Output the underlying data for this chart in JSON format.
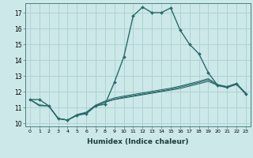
{
  "title": "",
  "xlabel": "Humidex (Indice chaleur)",
  "ylabel": "",
  "bg_color": "#cce8e8",
  "grid_color": "#aacfcf",
  "line_color": "#2a6b6b",
  "xlim": [
    -0.5,
    23.5
  ],
  "ylim": [
    9.8,
    17.6
  ],
  "xticks": [
    0,
    1,
    2,
    3,
    4,
    5,
    6,
    7,
    8,
    9,
    10,
    11,
    12,
    13,
    14,
    15,
    16,
    17,
    18,
    19,
    20,
    21,
    22,
    23
  ],
  "yticks": [
    10,
    11,
    12,
    13,
    14,
    15,
    16,
    17
  ],
  "series": [
    {
      "x": [
        0,
        1,
        2,
        3,
        4,
        5,
        6,
        7,
        8,
        9,
        10,
        11,
        12,
        13,
        14,
        15,
        16,
        17,
        18,
        19,
        20,
        21,
        22,
        23
      ],
      "y": [
        11.5,
        11.5,
        11.1,
        10.3,
        10.2,
        10.5,
        10.6,
        11.1,
        11.2,
        12.6,
        14.2,
        16.8,
        17.35,
        17.0,
        17.0,
        17.3,
        15.9,
        15.0,
        14.4,
        13.2,
        12.4,
        12.3,
        12.5,
        11.85
      ],
      "marker": "D",
      "markersize": 2.0,
      "linewidth": 1.0
    },
    {
      "x": [
        0,
        1,
        2,
        3,
        4,
        5,
        6,
        7,
        8,
        9,
        10,
        11,
        12,
        13,
        14,
        15,
        16,
        17,
        18,
        19,
        20,
        21,
        22,
        23
      ],
      "y": [
        11.5,
        11.15,
        11.1,
        10.3,
        10.2,
        10.5,
        10.65,
        11.1,
        11.35,
        11.5,
        11.6,
        11.7,
        11.8,
        11.9,
        12.0,
        12.1,
        12.2,
        12.35,
        12.5,
        12.65,
        12.4,
        12.3,
        12.5,
        11.85
      ],
      "marker": null,
      "markersize": 0,
      "linewidth": 0.8
    },
    {
      "x": [
        0,
        1,
        2,
        3,
        4,
        5,
        6,
        7,
        8,
        9,
        10,
        11,
        12,
        13,
        14,
        15,
        16,
        17,
        18,
        19,
        20,
        21,
        22,
        23
      ],
      "y": [
        11.5,
        11.15,
        11.1,
        10.3,
        10.2,
        10.55,
        10.7,
        11.15,
        11.4,
        11.6,
        11.72,
        11.82,
        11.92,
        12.02,
        12.12,
        12.22,
        12.35,
        12.5,
        12.65,
        12.82,
        12.45,
        12.32,
        12.52,
        11.92
      ],
      "marker": null,
      "markersize": 0,
      "linewidth": 0.8
    },
    {
      "x": [
        0,
        1,
        2,
        3,
        4,
        5,
        6,
        7,
        8,
        9,
        10,
        11,
        12,
        13,
        14,
        15,
        16,
        17,
        18,
        19,
        20,
        21,
        22,
        23
      ],
      "y": [
        11.5,
        11.1,
        11.1,
        10.3,
        10.2,
        10.52,
        10.67,
        11.1,
        11.32,
        11.52,
        11.65,
        11.75,
        11.85,
        11.95,
        12.05,
        12.15,
        12.28,
        12.43,
        12.58,
        12.75,
        12.38,
        12.25,
        12.45,
        11.88
      ],
      "marker": null,
      "markersize": 0,
      "linewidth": 0.8
    }
  ]
}
